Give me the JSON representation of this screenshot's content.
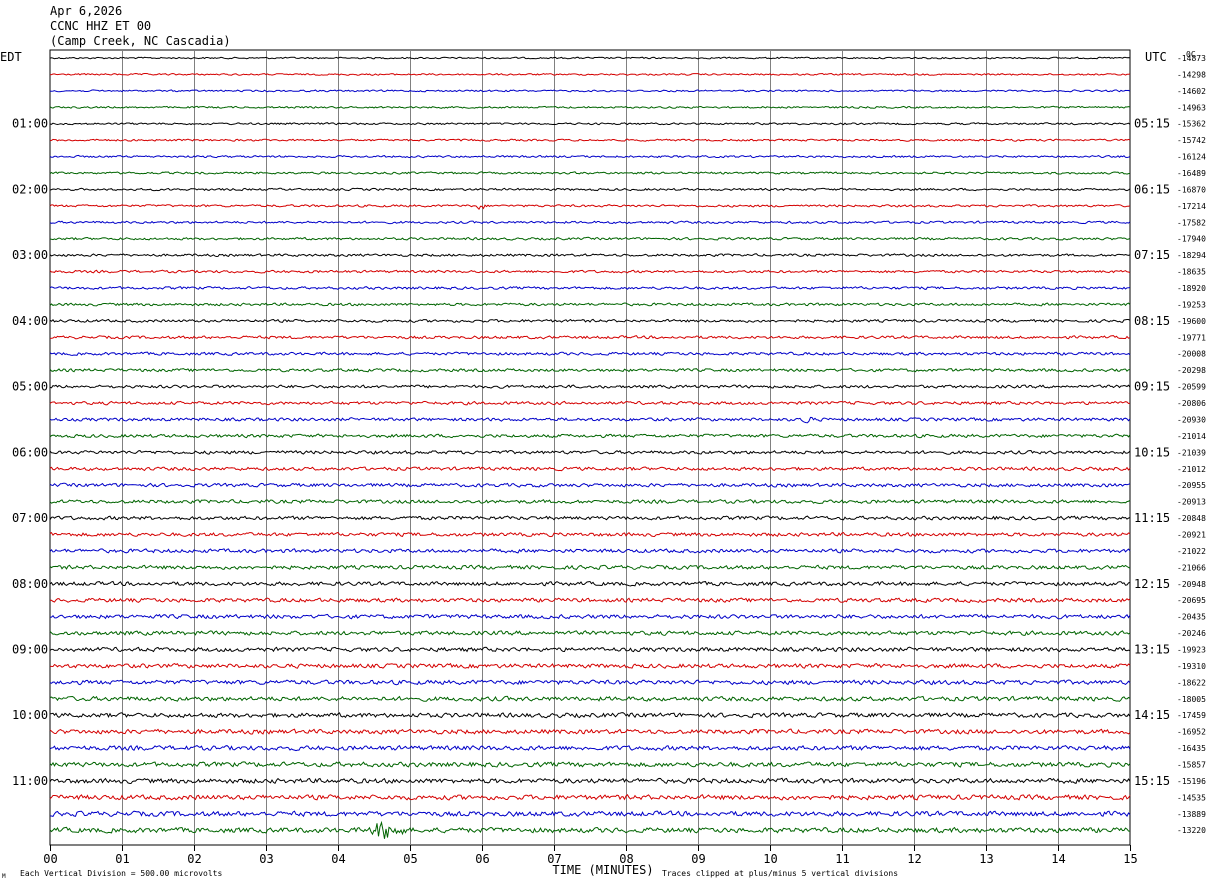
{
  "header": {
    "date": "Apr 6,2026",
    "station": "CCNC HHZ ET 00",
    "location": "(Camp Creek, NC Cascadia)"
  },
  "labels": {
    "left_zone": "EDT",
    "right_zone": "UTC",
    "right_corner": "0C",
    "x_axis_title": "TIME (MINUTES)",
    "footer_left": "Each Vertical Division =  500.00 microvolts",
    "footer_right": "Traces clipped at plus/minus 5 vertical divisions",
    "footer_mark": "M"
  },
  "chart_data": {
    "type": "line",
    "title": "CCNC HHZ ET 00",
    "xlabel": "TIME (MINUTES)",
    "xlim": [
      0,
      15
    ],
    "x_ticks": [
      "00",
      "01",
      "02",
      "03",
      "04",
      "05",
      "06",
      "07",
      "08",
      "09",
      "10",
      "11",
      "12",
      "13",
      "14",
      "15"
    ],
    "trace_count": 48,
    "trace_minutes": 15,
    "trace_colors": [
      "#000000",
      "#d40000",
      "#0000c8",
      "#006400"
    ],
    "left_time_labels": [
      "01:00",
      "02:00",
      "03:00",
      "04:00",
      "05:00",
      "06:00",
      "07:00",
      "08:00",
      "09:00",
      "10:00",
      "11:00"
    ],
    "left_label_trace_index": [
      4,
      8,
      12,
      16,
      20,
      24,
      28,
      32,
      36,
      40,
      44
    ],
    "right_time_labels": [
      "05:15",
      "06:15",
      "07:15",
      "08:15",
      "09:15",
      "10:15",
      "11:15",
      "12:15",
      "13:15",
      "14:15",
      "15:15"
    ],
    "right_label_trace_index": [
      4,
      8,
      12,
      16,
      20,
      24,
      28,
      32,
      36,
      40,
      44
    ],
    "trace_offsets": [
      -14873,
      -14298,
      -14602,
      -14963,
      -15362,
      -15742,
      -16124,
      -16489,
      -16870,
      -17214,
      -17582,
      -17940,
      -18294,
      -18635,
      -18920,
      -19253,
      -19600,
      -19771,
      -20008,
      -20298,
      -20599,
      -20806,
      -20930,
      -21014,
      -21039,
      -21012,
      -20955,
      -20913,
      -20848,
      -20921,
      -21022,
      -21066,
      -20948,
      -20695,
      -20435,
      -20246,
      -19923,
      -19310,
      -18622,
      -18005,
      -17459,
      -16952,
      -16435,
      -15857,
      -15196,
      -14535,
      -13889,
      -13220
    ],
    "events": [
      {
        "trace": 47,
        "minute_start": 4.4,
        "minute_end": 4.95,
        "amplitude": "large"
      },
      {
        "trace": 22,
        "minute_start": 10.4,
        "minute_end": 10.6,
        "amplitude": "small"
      },
      {
        "trace": 9,
        "minute_start": 5.9,
        "minute_end": 6.05,
        "amplitude": "small"
      }
    ]
  }
}
